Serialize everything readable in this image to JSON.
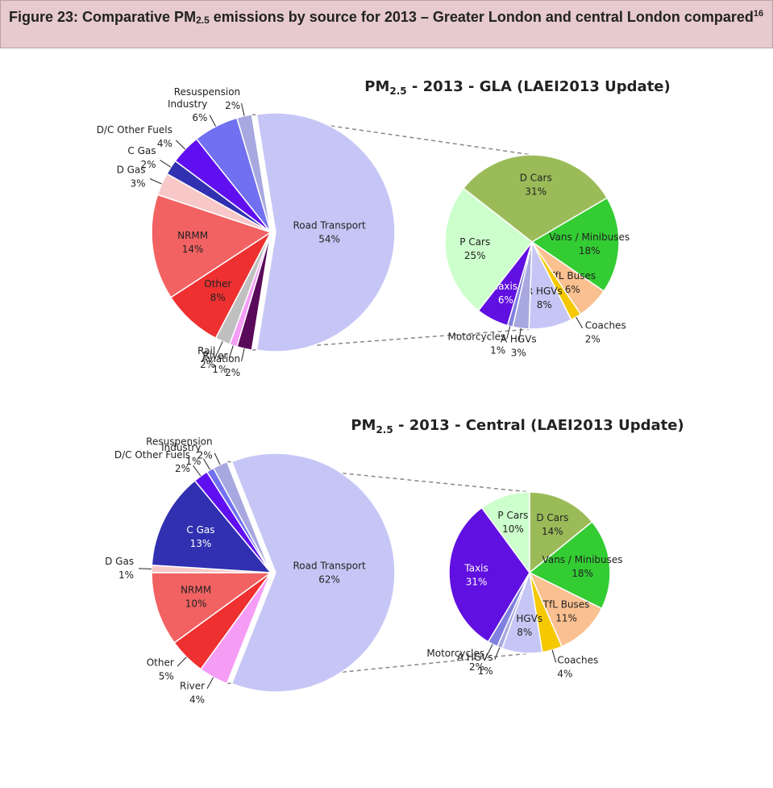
{
  "header": {
    "title": "Figure 23: Comparative PM",
    "title_sub": "2.5",
    "title_rest": " emissions by source for 2013 – Greater London and central London compared",
    "title_sup": "16"
  },
  "chart_data": [
    {
      "type": "pie",
      "title": "PM",
      "title_sub": "2.5",
      "title_rest": " - 2013 - GLA (LAEI2013 Update)",
      "categories": [
        "Road Transport",
        "Aviation",
        "River",
        "Rail",
        "Other",
        "NRMM",
        "D Gas",
        "C Gas",
        "D/C Other Fuels",
        "Industry",
        "Resuspension"
      ],
      "values": [
        54,
        2,
        1,
        2,
        8,
        14,
        3,
        2,
        4,
        6,
        2
      ],
      "value_labels": [
        "54%",
        "2%",
        "1%",
        "2%",
        "8%",
        "14%",
        "3%",
        "2%",
        "4%",
        "6%",
        "2%"
      ],
      "colors": [
        "#c6c6f6",
        "#5a0a5a",
        "#f59cf5",
        "#c0c0c0",
        "#ee3030",
        "#f26262",
        "#f8c8c8",
        "#3030b0",
        "#6010f0",
        "#7070f0",
        "#a8a8e0"
      ],
      "detail": {
        "categories": [
          "D Cars",
          "Vans / Minibuses",
          "TfL Buses",
          "Coaches",
          "R HGVs",
          "A HGVs",
          "Motorcycles",
          "Taxis",
          "P Cars"
        ],
        "values": [
          31,
          18,
          6,
          2,
          8,
          3,
          1,
          6,
          25
        ],
        "value_labels": [
          "31%",
          "18%",
          "6%",
          "2%",
          "8%",
          "3%",
          "1%",
          "6%",
          "25%"
        ],
        "colors": [
          "#9bbb59",
          "#33cc33",
          "#fac090",
          "#f5c800",
          "#c6c6f6",
          "#a8a8e0",
          "#8080e0",
          "#6010e0",
          "#ccffcc"
        ]
      }
    },
    {
      "type": "pie",
      "title": "PM",
      "title_sub": "2.5",
      "title_rest": " - 2013 - Central (LAEI2013 Update)",
      "categories": [
        "Road Transport",
        "River",
        "Other",
        "NRMM",
        "D Gas",
        "C Gas",
        "D/C Other Fuels",
        "Industry",
        "Resuspension"
      ],
      "values": [
        62,
        4,
        5,
        10,
        1,
        13,
        2,
        1,
        2
      ],
      "value_labels": [
        "62%",
        "4%",
        "5%",
        "10%",
        "1%",
        "13%",
        "2%",
        "1%",
        "2%"
      ],
      "colors": [
        "#c6c6f6",
        "#f59cf5",
        "#ee3030",
        "#f26262",
        "#f8c8c8",
        "#3030b0",
        "#6010f0",
        "#7070f0",
        "#a8a8e0"
      ],
      "detail": {
        "categories": [
          "D Cars",
          "Vans / Minibuses",
          "TfL Buses",
          "Coaches",
          "R HGVs",
          "A HGVs",
          "Motorcycles",
          "Taxis",
          "P Cars"
        ],
        "values": [
          14,
          18,
          11,
          4,
          8,
          1,
          2,
          31,
          10
        ],
        "value_labels": [
          "14%",
          "18%",
          "11%",
          "4%",
          "8%",
          "1%",
          "2%",
          "31%",
          "10%"
        ],
        "colors": [
          "#9bbb59",
          "#33cc33",
          "#fac090",
          "#f5c800",
          "#c6c6f6",
          "#a8a8e0",
          "#8080e0",
          "#6010e0",
          "#ccffcc"
        ]
      }
    }
  ]
}
